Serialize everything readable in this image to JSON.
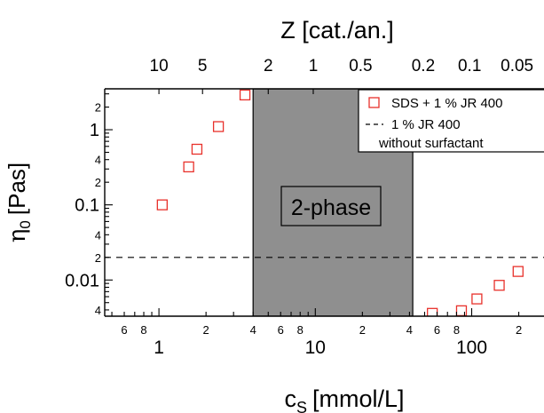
{
  "chart_data": {
    "type": "scatter",
    "xlabel": "c",
    "xlabel_sub": "S",
    "xlabel_units": "[mmol/L]",
    "x2label": "Z [cat./an.]",
    "ylabel": "η",
    "ylabel_sub": "0",
    "ylabel_units": "[Pas]",
    "xscale": "log",
    "yscale": "log",
    "xlim": [
      0.45,
      290
    ],
    "ylim": [
      0.0033,
      3.5
    ],
    "grid": false,
    "legend_position": "top-right",
    "x_major_ticks": [
      {
        "value": 1,
        "label": "1"
      },
      {
        "value": 10,
        "label": "10"
      },
      {
        "value": 100,
        "label": "100"
      }
    ],
    "x_minor_labels": [
      {
        "value": 0.6,
        "label": "6"
      },
      {
        "value": 0.8,
        "label": "8"
      },
      {
        "value": 2,
        "label": "2"
      },
      {
        "value": 4,
        "label": "4"
      },
      {
        "value": 6,
        "label": "6"
      },
      {
        "value": 8,
        "label": "8"
      },
      {
        "value": 20,
        "label": "2"
      },
      {
        "value": 40,
        "label": "4"
      },
      {
        "value": 60,
        "label": "6"
      },
      {
        "value": 80,
        "label": "8"
      },
      {
        "value": 200,
        "label": "2"
      }
    ],
    "x2_ticks": [
      {
        "value": 1.0,
        "label": "10"
      },
      {
        "value": 1.9,
        "label": "5"
      },
      {
        "value": 5.0,
        "label": "2"
      },
      {
        "value": 9.7,
        "label": "1"
      },
      {
        "value": 19.5,
        "label": "0.5"
      },
      {
        "value": 49,
        "label": "0.2"
      },
      {
        "value": 97,
        "label": "0.1"
      },
      {
        "value": 195,
        "label": "0.05"
      }
    ],
    "y_major_ticks": [
      {
        "value": 1,
        "label": "1"
      },
      {
        "value": 0.1,
        "label": "0.1"
      },
      {
        "value": 0.01,
        "label": "0.01"
      }
    ],
    "y_minor_labels": [
      {
        "value": 2,
        "label": "2"
      },
      {
        "value": 0.4,
        "label": "4"
      },
      {
        "value": 0.2,
        "label": "2"
      },
      {
        "value": 0.04,
        "label": "4"
      },
      {
        "value": 0.02,
        "label": "2"
      },
      {
        "value": 0.004,
        "label": "4"
      }
    ],
    "series": [
      {
        "name": "SDS + 1 % JR 400",
        "marker": "open-square",
        "color": "#e8312b",
        "x": [
          1.05,
          1.55,
          1.75,
          2.4,
          3.55,
          56,
          86,
          108,
          150,
          198
        ],
        "y": [
          0.1,
          0.32,
          0.55,
          1.1,
          2.9,
          0.0036,
          0.0039,
          0.0056,
          0.0085,
          0.013
        ]
      },
      {
        "name": "1 % JR 400 without surfactant",
        "style": "dashed-line",
        "color": "#000000",
        "y_const": 0.02
      }
    ],
    "regions": [
      {
        "label": "2-phase",
        "x_from": 4.0,
        "x_to": 42,
        "fill": "#8f8f8f"
      }
    ],
    "legend": {
      "items": [
        {
          "symbol": "open-square",
          "line1": "SDS + 1 % JR 400",
          "line2": ""
        },
        {
          "symbol": "dashed-line",
          "line1": "1 % JR 400",
          "line2": "without surfactant"
        }
      ]
    }
  }
}
